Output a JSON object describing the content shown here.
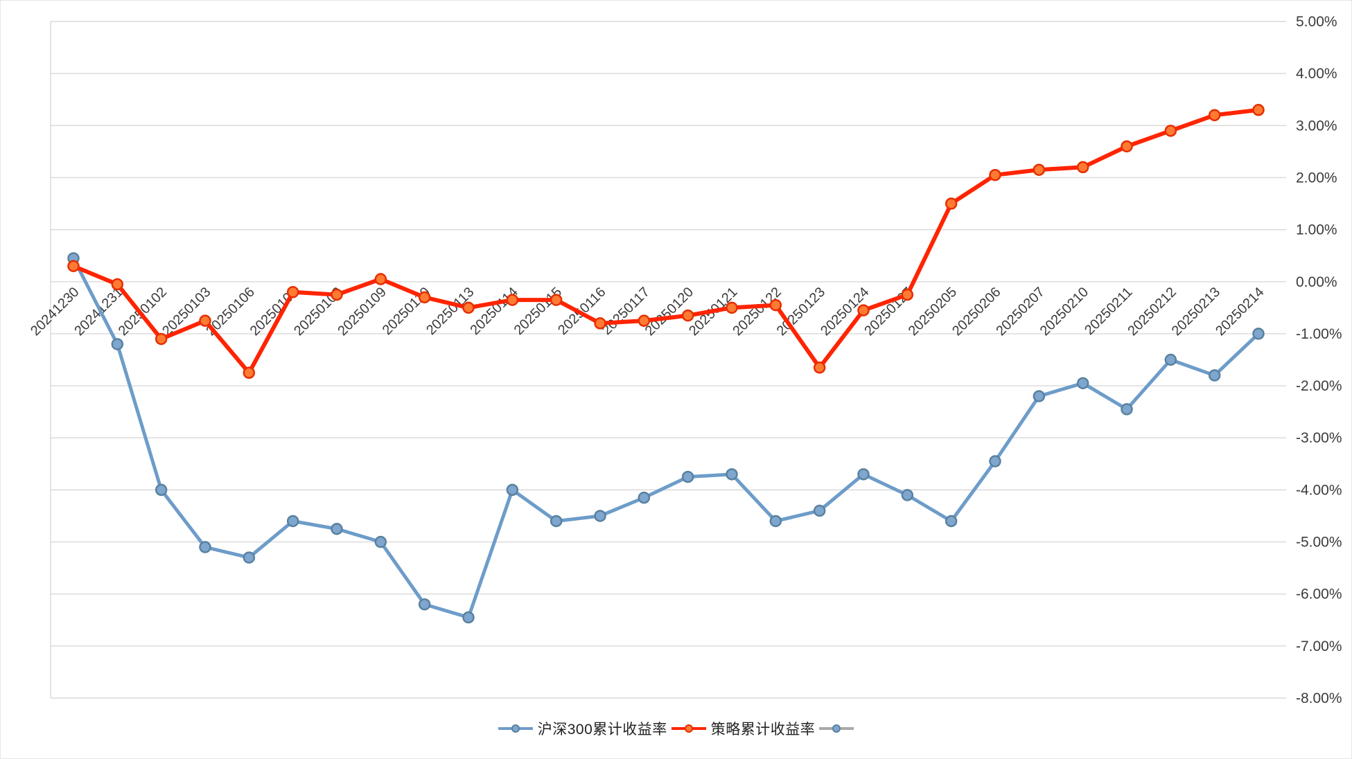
{
  "chart_data": {
    "type": "line",
    "title": "",
    "categories": [
      "20241230",
      "20241231",
      "20250102",
      "20250103",
      "20250106",
      "20250107",
      "20250108",
      "20250109",
      "20250110",
      "20250113",
      "20250114",
      "20250115",
      "20250116",
      "20250117",
      "20250120",
      "20250121",
      "20250122",
      "20250123",
      "20250124",
      "20250127",
      "20250205",
      "20250206",
      "20250207",
      "20250210",
      "20250211",
      "20250212",
      "20250213",
      "20250214"
    ],
    "series": [
      {
        "name": "沪深300累计收益率",
        "line_color": "#6D9CC9",
        "marker_fill": "#7FA6CE",
        "marker_stroke": "#58819F",
        "values": [
          0.45,
          -1.2,
          -4.0,
          -5.1,
          -5.3,
          -4.6,
          -4.75,
          -5.0,
          -6.2,
          -6.45,
          -4.0,
          -4.6,
          -4.5,
          -4.15,
          -3.75,
          -3.7,
          -4.6,
          -4.4,
          -3.7,
          -4.1,
          -4.6,
          -3.45,
          -2.2,
          -1.95,
          -2.45,
          -1.5,
          -1.8,
          -1.0
        ]
      },
      {
        "name": "策略累计收益率",
        "line_color": "#FF2400",
        "marker_fill": "#FF7B33",
        "marker_stroke": "#E62E00",
        "values": [
          0.3,
          -0.05,
          -1.1,
          -0.75,
          -1.75,
          -0.2,
          -0.25,
          0.05,
          -0.3,
          -0.5,
          -0.35,
          -0.35,
          -0.8,
          -0.75,
          -0.65,
          -0.5,
          -0.45,
          -1.65,
          -0.55,
          -0.25,
          1.5,
          2.05,
          2.15,
          2.2,
          2.6,
          2.9,
          3.2,
          3.3
        ]
      },
      {
        "name": "",
        "line_color": "#A9A9A9",
        "marker_fill": "#7FA6CE",
        "marker_stroke": "#58819F",
        "values": []
      }
    ],
    "ylim": [
      -8,
      5
    ],
    "ytick_step": 1,
    "ytick_labels": [
      "5.00%",
      "4.00%",
      "3.00%",
      "2.00%",
      "1.00%",
      "0.00%",
      "-1.00%",
      "-2.00%",
      "-3.00%",
      "-4.00%",
      "-5.00%",
      "-6.00%",
      "-7.00%",
      "-8.00%"
    ],
    "grid": true,
    "legend_position": "bottom",
    "axis_text_color": "#3B3B3B",
    "grid_color": "#D9D9D9",
    "background": "#FFFFFF"
  }
}
